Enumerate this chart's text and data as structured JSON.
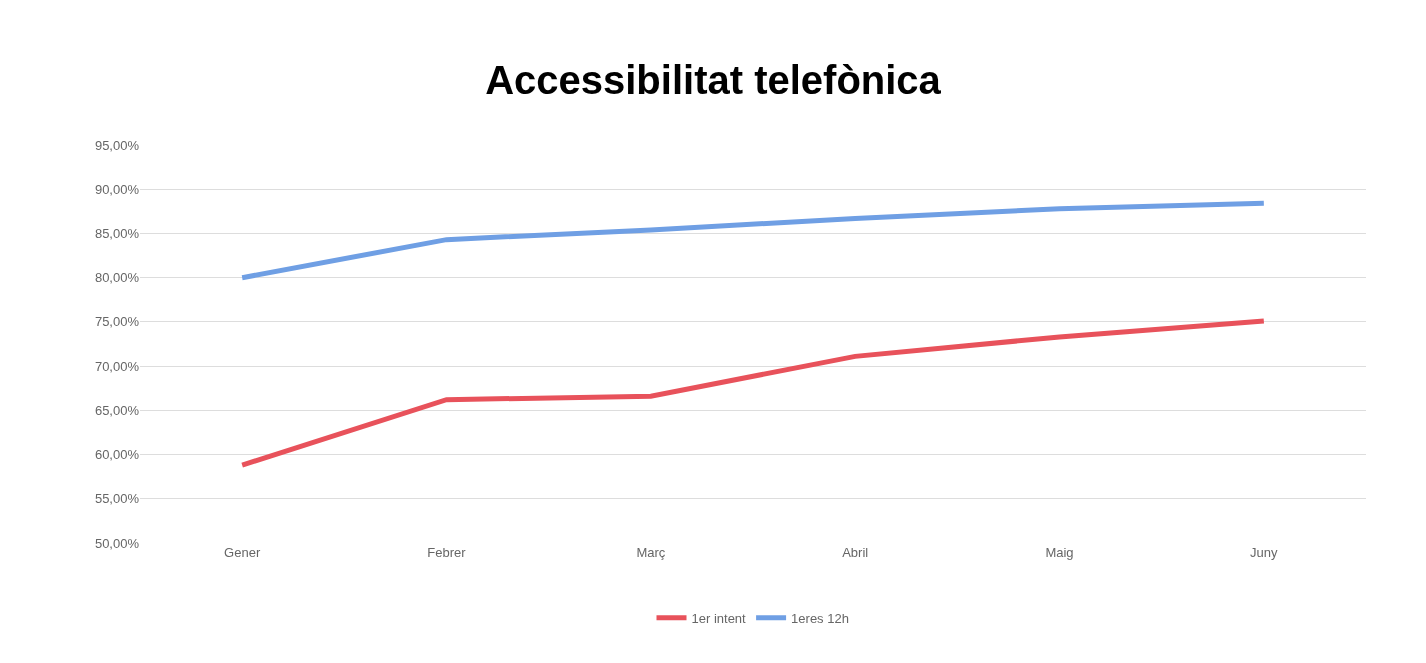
{
  "chart_data": {
    "type": "line",
    "title": "Accessibilitat telefònica",
    "categories": [
      "Gener",
      "Febrer",
      "Març",
      "Abril",
      "Maig",
      "Juny"
    ],
    "series": [
      {
        "name": "1er intent",
        "color": "#e8525b",
        "values": [
          58.8,
          66.2,
          66.6,
          71.1,
          73.3,
          75.1
        ]
      },
      {
        "name": "1eres 12h",
        "color": "#6f9fe4",
        "values": [
          80.0,
          84.3,
          85.4,
          86.7,
          87.8,
          88.4
        ]
      }
    ],
    "ylim": [
      50,
      95
    ],
    "yticks": [
      {
        "value": 50,
        "label": "50,00%"
      },
      {
        "value": 55,
        "label": "55,00%"
      },
      {
        "value": 60,
        "label": "60,00%"
      },
      {
        "value": 65,
        "label": "65,00%"
      },
      {
        "value": 70,
        "label": "70,00%"
      },
      {
        "value": 75,
        "label": "75,00%"
      },
      {
        "value": 80,
        "label": "80,00%"
      },
      {
        "value": 85,
        "label": "85,00%"
      },
      {
        "value": 90,
        "label": "90,00%"
      },
      {
        "value": 95,
        "label": "95,00%"
      }
    ],
    "grid": "y",
    "legend": "bottom",
    "marker": "none",
    "line_style": "solid"
  }
}
